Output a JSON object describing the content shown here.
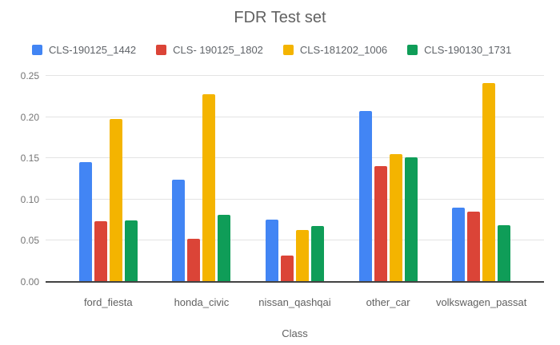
{
  "chart_data": {
    "type": "bar",
    "title": "FDR Test set",
    "xlabel": "Class",
    "ylabel": "",
    "ylim": [
      0,
      0.25
    ],
    "yticks": [
      0,
      0.05,
      0.1,
      0.15,
      0.2,
      0.25
    ],
    "ytick_labels": [
      "0.00",
      "0.05",
      "0.10",
      "0.15",
      "0.20",
      "0.25"
    ],
    "grid": true,
    "legend_position": "top-left",
    "categories": [
      "ford_fiesta",
      "honda_civic",
      "nissan_qashqai",
      "other_car",
      "volkswagen_passat"
    ],
    "series": [
      {
        "name": "CLS-190125_1442",
        "color": "#4285F4",
        "values": [
          0.145,
          0.124,
          0.076,
          0.207,
          0.09
        ]
      },
      {
        "name": "CLS- 190125_1802",
        "color": "#DB4437",
        "values": [
          0.074,
          0.052,
          0.032,
          0.141,
          0.085
        ]
      },
      {
        "name": "CLS-181202_1006",
        "color": "#F4B400",
        "values": [
          0.198,
          0.228,
          0.063,
          0.155,
          0.241
        ]
      },
      {
        "name": "CLS-190130_1731",
        "color": "#0F9D58",
        "values": [
          0.075,
          0.081,
          0.068,
          0.151,
          0.069
        ]
      }
    ],
    "colors": {
      "background": "#ffffff",
      "gridline": "#e3e3e3",
      "axis_line": "#424242",
      "title_text": "#616161",
      "tick_text": "#757575",
      "label_text": "#616161",
      "legend_text": "#5f6368"
    }
  }
}
